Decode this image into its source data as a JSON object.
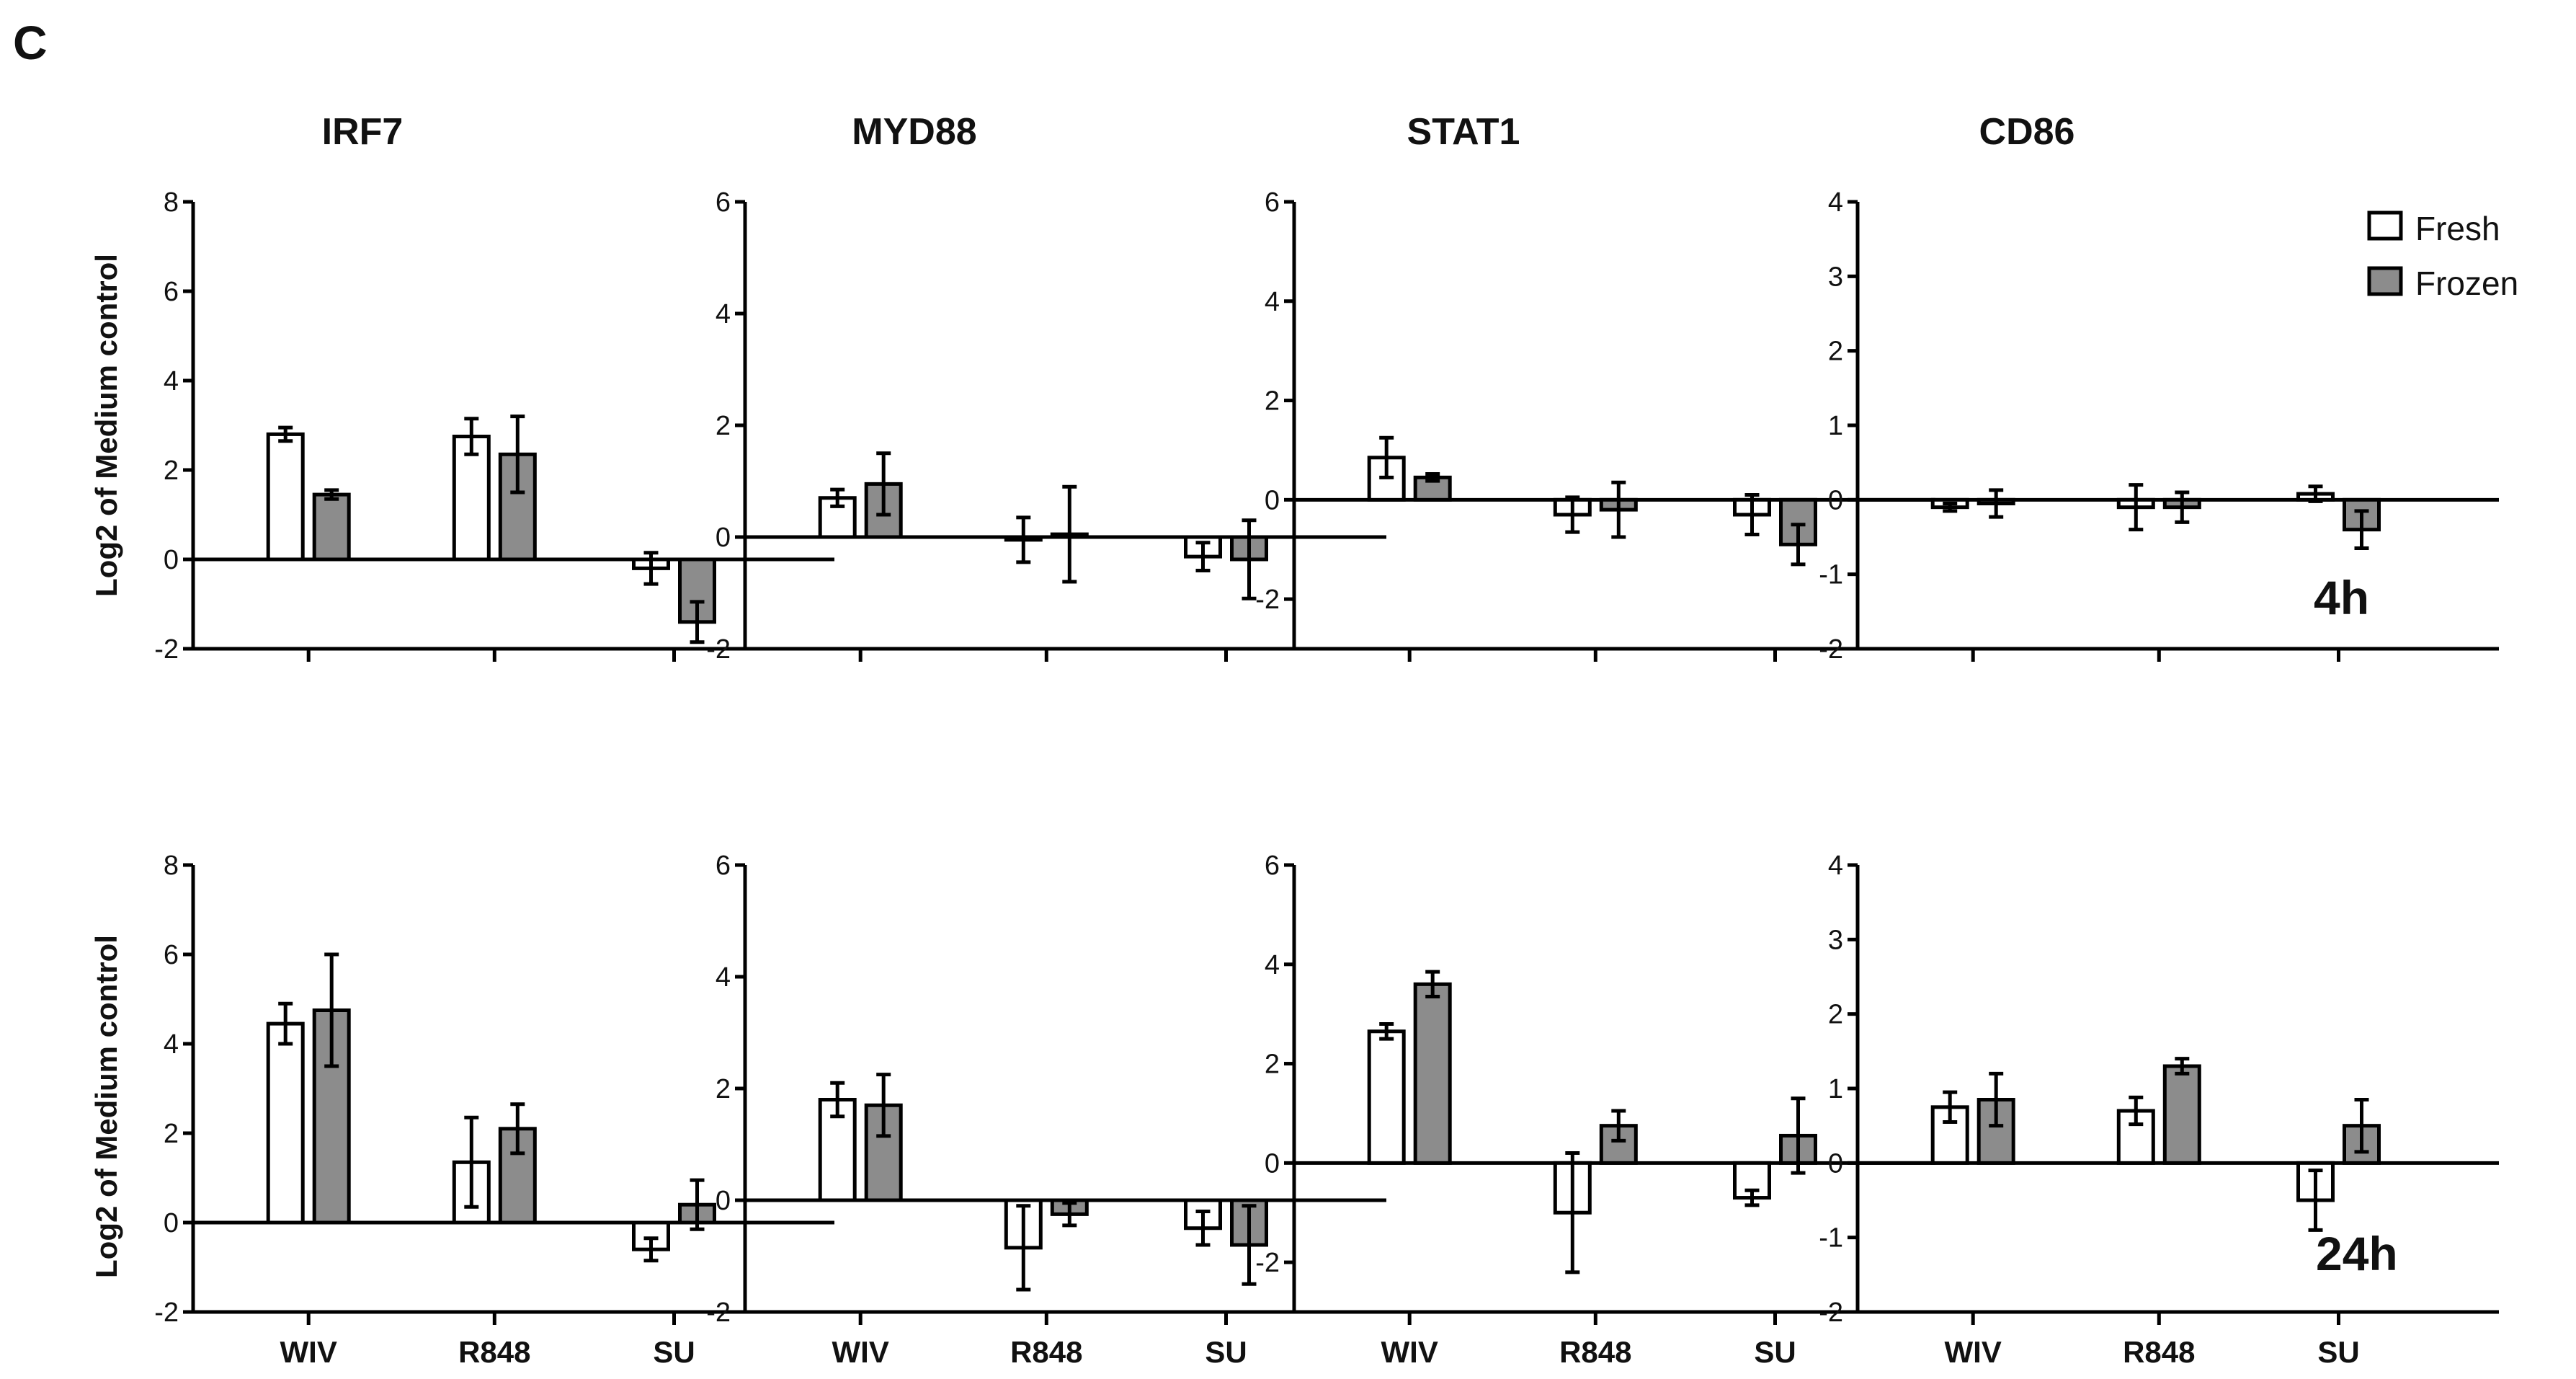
{
  "figure_letter": "C",
  "legend": {
    "fresh": {
      "label": "Fresh",
      "color": "#ffffff"
    },
    "frozen": {
      "label": "Frozen",
      "color": "#8c8c8c"
    }
  },
  "ylabel": "Log2 of Medium control",
  "row_labels": [
    "4h",
    "24h"
  ],
  "chart_data": [
    {
      "type": "bar",
      "title": "IRF7",
      "timepoint": "4h",
      "ylabel": "Log2 of Medium control",
      "ylim": [
        -2,
        8
      ],
      "yticks": [
        -2,
        0,
        2,
        4,
        6,
        8
      ],
      "categories": [
        "WIV",
        "R848",
        "SU"
      ],
      "show_categories": false,
      "series": [
        {
          "name": "Fresh",
          "values": [
            2.8,
            2.75,
            -0.2
          ],
          "errors": [
            0.15,
            0.4,
            0.35
          ]
        },
        {
          "name": "Frozen",
          "values": [
            1.45,
            2.35,
            -1.4
          ],
          "errors": [
            0.1,
            0.85,
            0.45
          ]
        }
      ]
    },
    {
      "type": "bar",
      "title": "MYD88",
      "timepoint": "4h",
      "ylim": [
        -2,
        6
      ],
      "yticks": [
        -2,
        0,
        2,
        4,
        6
      ],
      "categories": [
        "WIV",
        "R848",
        "SU"
      ],
      "show_categories": false,
      "series": [
        {
          "name": "Fresh",
          "values": [
            0.7,
            -0.05,
            -0.35
          ],
          "errors": [
            0.15,
            0.4,
            0.25
          ]
        },
        {
          "name": "Frozen",
          "values": [
            0.95,
            0.05,
            -0.4
          ],
          "errors": [
            0.55,
            0.85,
            0.7
          ]
        }
      ]
    },
    {
      "type": "bar",
      "title": "STAT1",
      "timepoint": "4h",
      "ylim": [
        -3,
        6
      ],
      "yticks": [
        -2,
        0,
        2,
        4,
        6
      ],
      "categories": [
        "WIV",
        "R848",
        "SU"
      ],
      "show_categories": false,
      "series": [
        {
          "name": "Fresh",
          "values": [
            0.85,
            -0.3,
            -0.3
          ],
          "errors": [
            0.4,
            0.35,
            0.4
          ]
        },
        {
          "name": "Frozen",
          "values": [
            0.45,
            -0.2,
            -0.9
          ],
          "errors": [
            0.07,
            0.55,
            0.4
          ]
        }
      ]
    },
    {
      "type": "bar",
      "title": "CD86",
      "timepoint": "4h",
      "ylim": [
        -2,
        4
      ],
      "yticks": [
        -2,
        -1,
        0,
        1,
        2,
        3,
        4
      ],
      "categories": [
        "WIV",
        "R848",
        "SU"
      ],
      "show_categories": false,
      "series": [
        {
          "name": "Fresh",
          "values": [
            -0.1,
            -0.1,
            0.08
          ],
          "errors": [
            0.05,
            0.3,
            0.1
          ]
        },
        {
          "name": "Frozen",
          "values": [
            -0.05,
            -0.1,
            -0.4
          ],
          "errors": [
            0.18,
            0.2,
            0.25
          ]
        }
      ]
    },
    {
      "type": "bar",
      "title": "",
      "timepoint": "24h",
      "ylabel": "Log2 of Medium control",
      "ylim": [
        -2,
        8
      ],
      "yticks": [
        -2,
        0,
        2,
        4,
        6,
        8
      ],
      "categories": [
        "WIV",
        "R848",
        "SU"
      ],
      "show_categories": true,
      "series": [
        {
          "name": "Fresh",
          "values": [
            4.45,
            1.35,
            -0.6
          ],
          "errors": [
            0.45,
            1.0,
            0.25
          ]
        },
        {
          "name": "Frozen",
          "values": [
            4.75,
            2.1,
            0.4
          ],
          "errors": [
            1.25,
            0.55,
            0.55
          ]
        }
      ]
    },
    {
      "type": "bar",
      "title": "",
      "timepoint": "24h",
      "ylim": [
        -2,
        6
      ],
      "yticks": [
        -2,
        0,
        2,
        4,
        6
      ],
      "categories": [
        "WIV",
        "R848",
        "SU"
      ],
      "show_categories": true,
      "series": [
        {
          "name": "Fresh",
          "values": [
            1.8,
            -0.85,
            -0.5
          ],
          "errors": [
            0.3,
            0.75,
            0.3
          ]
        },
        {
          "name": "Frozen",
          "values": [
            1.7,
            -0.25,
            -0.8
          ],
          "errors": [
            0.55,
            0.2,
            0.7
          ]
        }
      ]
    },
    {
      "type": "bar",
      "title": "",
      "timepoint": "24h",
      "ylim": [
        -3,
        6
      ],
      "yticks": [
        -2,
        0,
        2,
        4,
        6
      ],
      "categories": [
        "WIV",
        "R848",
        "SU"
      ],
      "show_categories": true,
      "series": [
        {
          "name": "Fresh",
          "values": [
            2.65,
            -1.0,
            -0.7
          ],
          "errors": [
            0.15,
            1.2,
            0.15
          ]
        },
        {
          "name": "Frozen",
          "values": [
            3.6,
            0.75,
            0.55
          ],
          "errors": [
            0.25,
            0.3,
            0.75
          ]
        }
      ]
    },
    {
      "type": "bar",
      "title": "",
      "timepoint": "24h",
      "ylim": [
        -2,
        4
      ],
      "yticks": [
        -2,
        -1,
        0,
        1,
        2,
        3,
        4
      ],
      "categories": [
        "WIV",
        "R848",
        "SU"
      ],
      "show_categories": true,
      "series": [
        {
          "name": "Fresh",
          "values": [
            0.75,
            0.7,
            -0.5
          ],
          "errors": [
            0.2,
            0.18,
            0.4
          ]
        },
        {
          "name": "Frozen",
          "values": [
            0.85,
            1.3,
            0.5
          ],
          "errors": [
            0.35,
            0.1,
            0.35
          ]
        }
      ]
    }
  ]
}
